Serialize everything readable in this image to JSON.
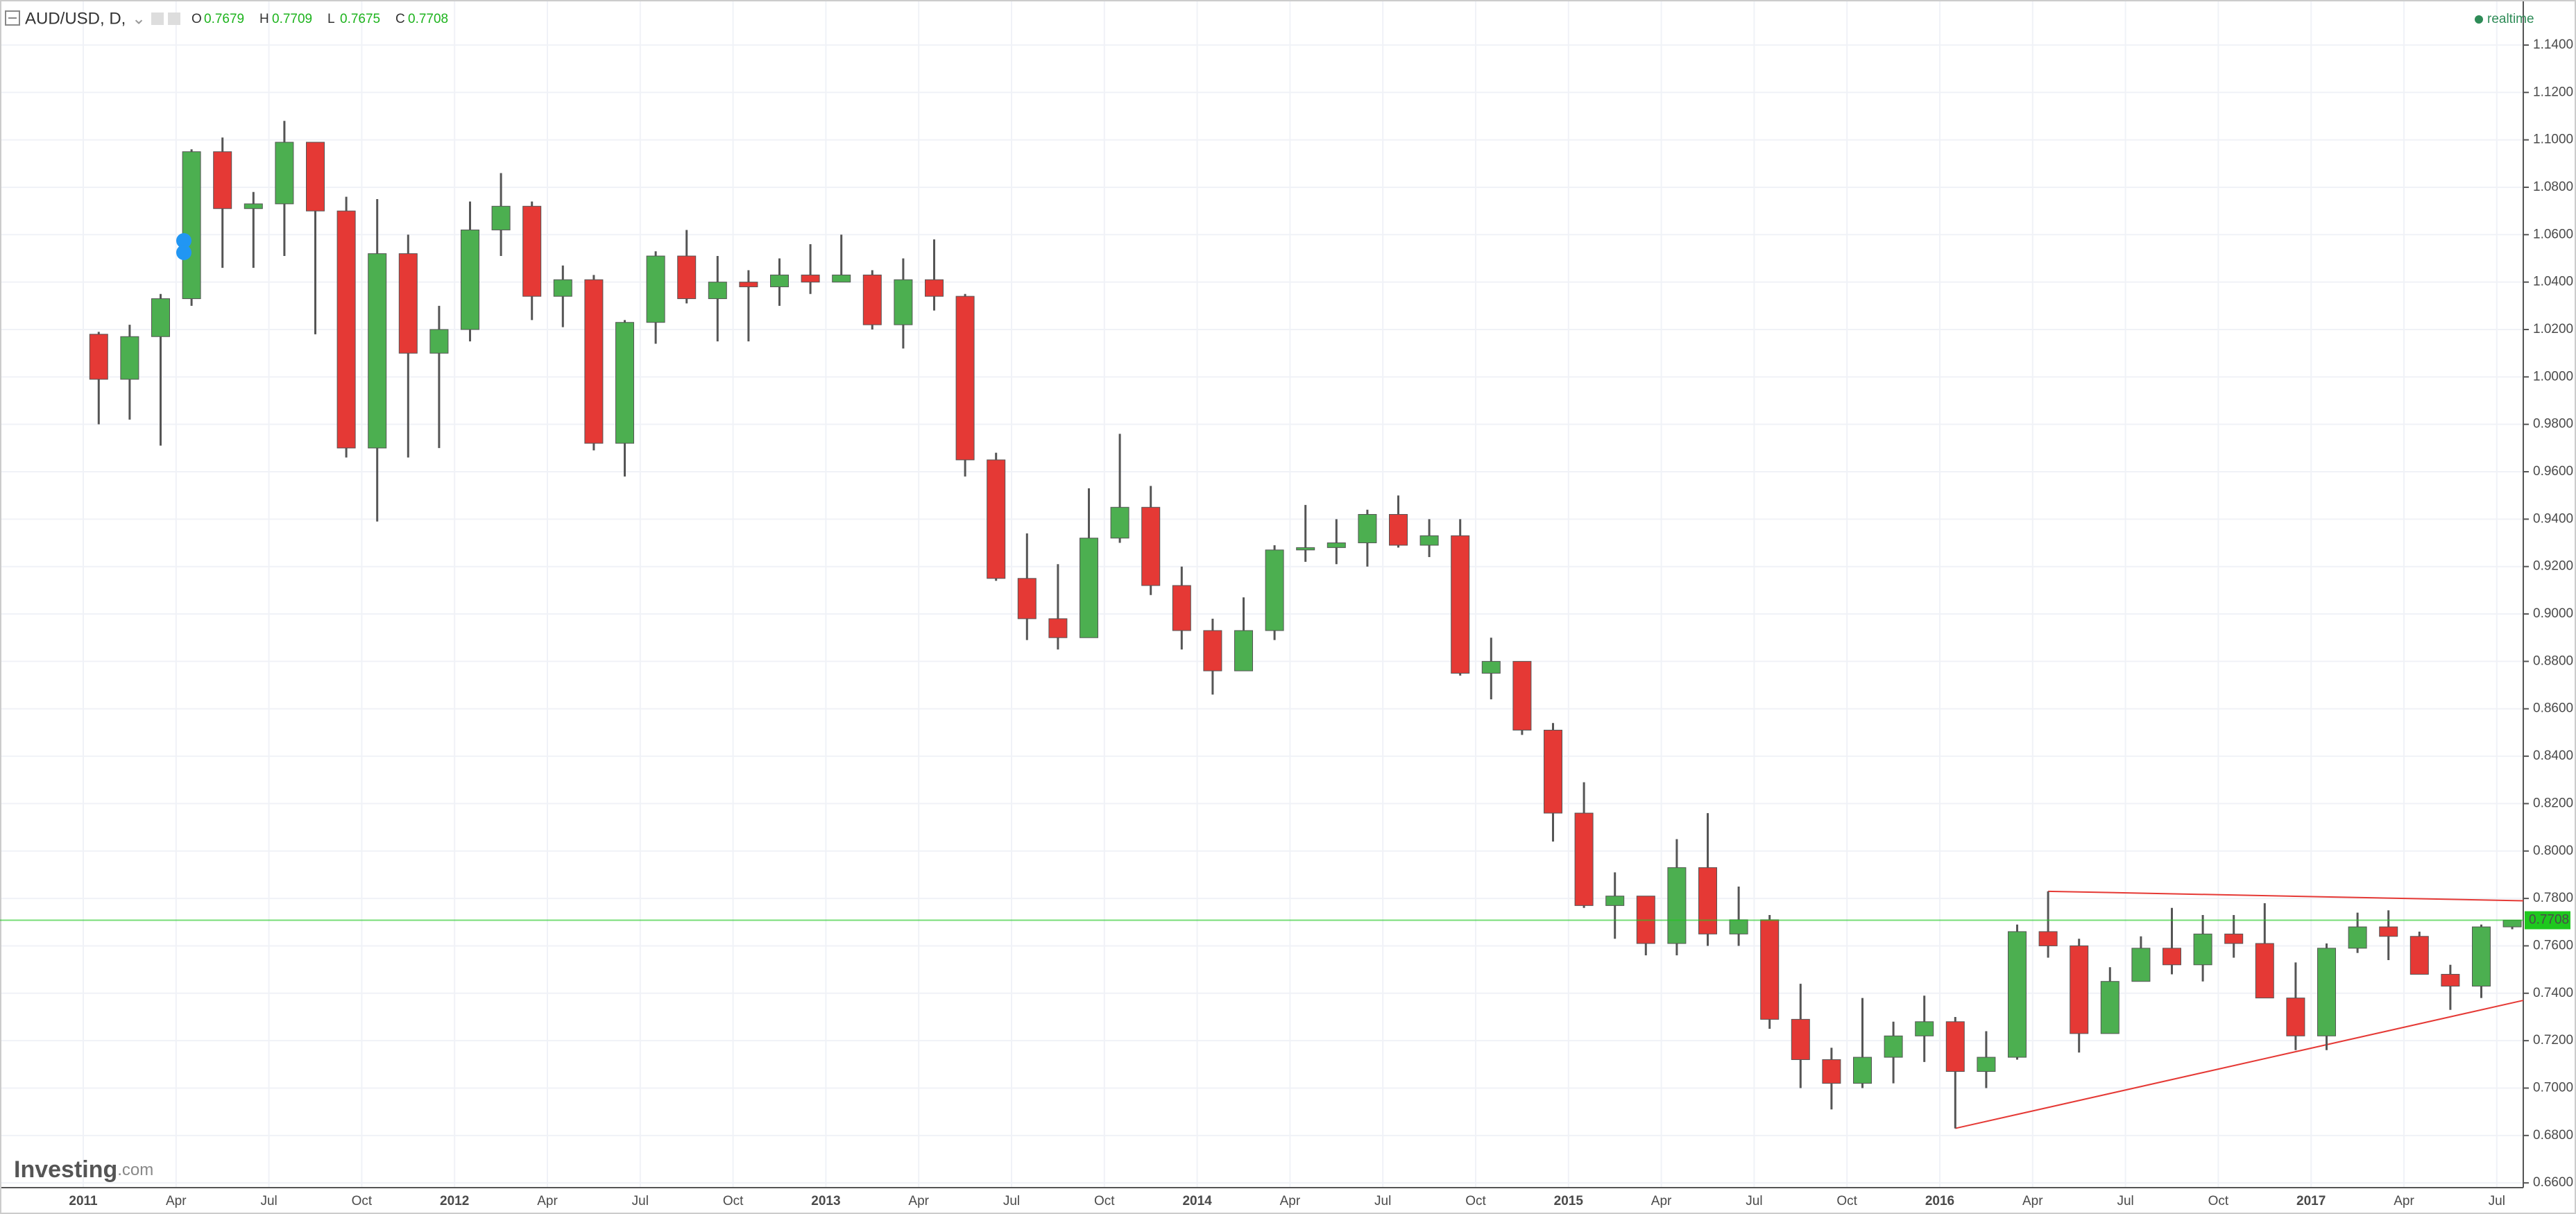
{
  "header": {
    "symbol": "AUD/USD, D,",
    "ohlc": [
      {
        "label": "O",
        "value": "0.7679"
      },
      {
        "label": "H",
        "value": "0.7709"
      },
      {
        "label": "L",
        "value": "0.7675"
      },
      {
        "label": "C",
        "value": "0.7708"
      }
    ],
    "status": "realtime"
  },
  "logo": {
    "brand": "Investing",
    "suffix": ".com"
  },
  "chart_data": {
    "type": "candlestick",
    "categories": [
      "2011",
      null,
      null,
      "Apr",
      null,
      null,
      "Jul",
      null,
      null,
      "Oct",
      null,
      null,
      "2012",
      null,
      null,
      "Apr",
      null,
      null,
      "Jul",
      null,
      null,
      "Oct",
      null,
      null,
      "2013",
      null,
      null,
      "Apr",
      null,
      null,
      "Jul",
      null,
      null,
      "Oct",
      null,
      null,
      "2014",
      null,
      null,
      "Apr",
      null,
      null,
      "Jul",
      null,
      null,
      "Oct",
      null,
      null,
      "2015",
      null,
      null,
      "Apr",
      null,
      null,
      "Jul",
      null,
      null,
      "Oct",
      null,
      null,
      "2016",
      null,
      null,
      "Apr",
      null,
      null,
      "Jul",
      null,
      null,
      "Oct",
      null,
      null,
      "2017",
      null,
      null,
      "Apr",
      null,
      null,
      "Jul"
    ],
    "open": [
      1.018,
      0.999,
      1.017,
      1.033,
      1.095,
      1.071,
      1.073,
      1.099,
      1.07,
      0.97,
      1.052,
      1.01,
      1.02,
      1.062,
      1.072,
      1.034,
      1.041,
      0.972,
      1.023,
      1.051,
      1.033,
      1.04,
      1.038,
      1.043,
      1.04,
      1.043,
      1.022,
      1.041,
      1.034,
      0.965,
      0.915,
      0.898,
      0.89,
      0.932,
      0.945,
      0.912,
      0.893,
      0.876,
      0.893,
      0.927,
      0.928,
      0.93,
      0.942,
      0.929,
      0.933,
      0.875,
      0.88,
      0.851,
      0.816,
      0.777,
      0.781,
      0.761,
      0.793,
      0.765,
      0.771,
      0.729,
      0.712,
      0.702,
      0.713,
      0.722,
      0.728,
      0.707,
      0.713,
      0.766,
      0.76,
      0.723,
      0.745,
      0.759,
      0.752,
      0.765,
      0.761,
      0.738,
      0.722,
      0.759,
      0.768,
      0.764,
      0.748,
      0.743,
      0.768
    ],
    "high": [
      1.019,
      1.022,
      1.035,
      1.096,
      1.101,
      1.078,
      1.108,
      1.099,
      1.076,
      1.075,
      1.06,
      1.03,
      1.074,
      1.086,
      1.074,
      1.047,
      1.043,
      1.024,
      1.053,
      1.062,
      1.051,
      1.045,
      1.05,
      1.056,
      1.06,
      1.045,
      1.05,
      1.058,
      1.035,
      0.968,
      0.934,
      0.921,
      0.953,
      0.976,
      0.954,
      0.92,
      0.898,
      0.907,
      0.929,
      0.946,
      0.94,
      0.944,
      0.95,
      0.94,
      0.94,
      0.89,
      0.88,
      0.854,
      0.829,
      0.791,
      0.781,
      0.805,
      0.816,
      0.785,
      0.773,
      0.744,
      0.717,
      0.738,
      0.728,
      0.739,
      0.73,
      0.724,
      0.769,
      0.783,
      0.763,
      0.751,
      0.764,
      0.776,
      0.773,
      0.773,
      0.778,
      0.753,
      0.761,
      0.774,
      0.775,
      0.766,
      0.752,
      0.769,
      0.7709
    ],
    "low": [
      0.98,
      0.982,
      0.971,
      1.03,
      1.046,
      1.046,
      1.051,
      1.018,
      0.966,
      0.939,
      0.966,
      0.97,
      1.015,
      1.051,
      1.024,
      1.021,
      0.969,
      0.958,
      1.014,
      1.031,
      1.015,
      1.015,
      1.03,
      1.035,
      1.04,
      1.02,
      1.012,
      1.028,
      0.958,
      0.914,
      0.889,
      0.885,
      0.89,
      0.93,
      0.908,
      0.885,
      0.866,
      0.88,
      0.889,
      0.922,
      0.921,
      0.92,
      0.928,
      0.924,
      0.874,
      0.864,
      0.849,
      0.804,
      0.776,
      0.763,
      0.756,
      0.756,
      0.76,
      0.76,
      0.725,
      0.7,
      0.691,
      0.7,
      0.702,
      0.711,
      0.683,
      0.7,
      0.712,
      0.755,
      0.715,
      0.727,
      0.745,
      0.748,
      0.745,
      0.755,
      0.738,
      0.716,
      0.716,
      0.757,
      0.754,
      0.749,
      0.733,
      0.738,
      0.767
    ],
    "close": [
      0.999,
      1.017,
      1.033,
      1.095,
      1.071,
      1.073,
      1.099,
      1.07,
      0.97,
      1.052,
      1.01,
      1.02,
      1.062,
      1.072,
      1.034,
      1.041,
      0.972,
      1.023,
      1.051,
      1.033,
      1.04,
      1.038,
      1.043,
      1.04,
      1.043,
      1.022,
      1.041,
      1.034,
      0.965,
      0.915,
      0.898,
      0.89,
      0.932,
      0.945,
      0.912,
      0.893,
      0.876,
      0.893,
      0.927,
      0.928,
      0.93,
      0.942,
      0.929,
      0.933,
      0.875,
      0.88,
      0.851,
      0.816,
      0.777,
      0.781,
      0.761,
      0.793,
      0.765,
      0.771,
      0.729,
      0.712,
      0.702,
      0.713,
      0.722,
      0.728,
      0.707,
      0.713,
      0.766,
      0.76,
      0.723,
      0.745,
      0.759,
      0.752,
      0.765,
      0.761,
      0.738,
      0.722,
      0.759,
      0.768,
      0.764,
      0.748,
      0.743,
      0.768,
      0.7708
    ],
    "up_color": "#4caf50",
    "down_color": "#e53935",
    "wick_color": "#555555",
    "ylim": [
      0.658,
      1.159
    ],
    "yticks": [
      {
        "value": 0.66,
        "label": "0.6600"
      },
      {
        "value": 0.68,
        "label": "0.6800"
      },
      {
        "value": 0.7,
        "label": "0.7000"
      },
      {
        "value": 0.72,
        "label": "0.7200"
      },
      {
        "value": 0.74,
        "label": "0.7400"
      },
      {
        "value": 0.76,
        "label": "0.7600"
      },
      {
        "value": 0.78,
        "label": "0.7800"
      },
      {
        "value": 0.8,
        "label": "0.8000"
      },
      {
        "value": 0.82,
        "label": "0.8200"
      },
      {
        "value": 0.84,
        "label": "0.8400"
      },
      {
        "value": 0.86,
        "label": "0.8600"
      },
      {
        "value": 0.88,
        "label": "0.8800"
      },
      {
        "value": 0.9,
        "label": "0.9000"
      },
      {
        "value": 0.92,
        "label": "0.9200"
      },
      {
        "value": 0.94,
        "label": "0.9400"
      },
      {
        "value": 0.96,
        "label": "0.9600"
      },
      {
        "value": 0.98,
        "label": "0.9800"
      },
      {
        "value": 1.0,
        "label": "1.0000"
      },
      {
        "value": 1.02,
        "label": "1.0200"
      },
      {
        "value": 1.04,
        "label": "1.0400"
      },
      {
        "value": 1.06,
        "label": "1.0600"
      },
      {
        "value": 1.08,
        "label": "1.0800"
      },
      {
        "value": 1.1,
        "label": "1.1000"
      },
      {
        "value": 1.12,
        "label": "1.1200"
      },
      {
        "value": 1.14,
        "label": "1.1400"
      }
    ],
    "grid": true,
    "last_price": 0.7708,
    "last_price_color": "#1ec81e",
    "trendlines": [
      {
        "start": 0.783,
        "end": 0.779,
        "color": "#e53935"
      },
      {
        "start": 0.683,
        "end": 0.737,
        "color": "#e53935"
      }
    ]
  }
}
